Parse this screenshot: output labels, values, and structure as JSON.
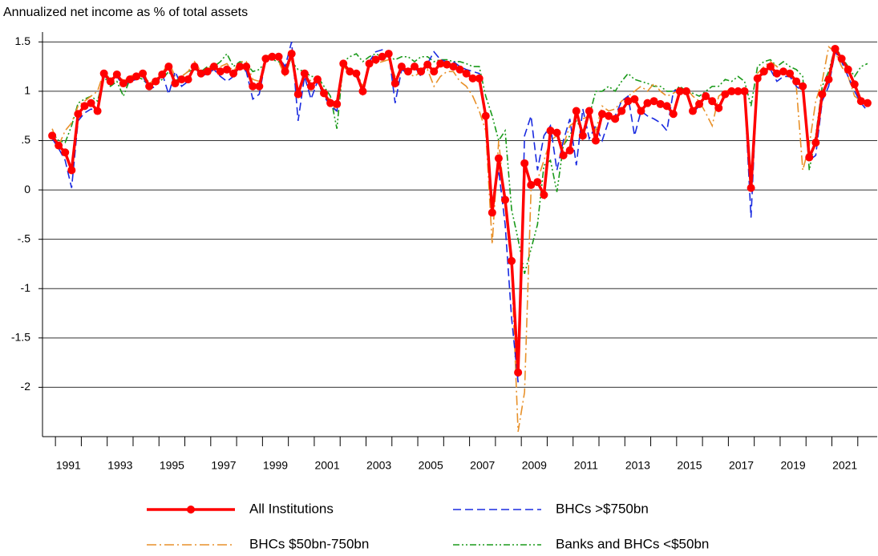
{
  "chart_data": {
    "type": "line",
    "title": "Annualized net income as % of total assets",
    "x": [
      1990.875,
      1991.125,
      1991.375,
      1991.625,
      1991.875,
      1992.125,
      1992.375,
      1992.625,
      1992.875,
      1993.125,
      1993.375,
      1993.625,
      1993.875,
      1994.125,
      1994.375,
      1994.625,
      1994.875,
      1995.125,
      1995.375,
      1995.625,
      1995.875,
      1996.125,
      1996.375,
      1996.625,
      1996.875,
      1997.125,
      1997.375,
      1997.625,
      1997.875,
      1998.125,
      1998.375,
      1998.625,
      1998.875,
      1999.125,
      1999.375,
      1999.625,
      1999.875,
      2000.125,
      2000.375,
      2000.625,
      2000.875,
      2001.125,
      2001.375,
      2001.625,
      2001.875,
      2002.125,
      2002.375,
      2002.625,
      2002.875,
      2003.125,
      2003.375,
      2003.625,
      2003.875,
      2004.125,
      2004.375,
      2004.625,
      2004.875,
      2005.125,
      2005.375,
      2005.625,
      2005.875,
      2006.125,
      2006.375,
      2006.625,
      2006.875,
      2007.125,
      2007.375,
      2007.625,
      2007.875,
      2008.125,
      2008.375,
      2008.625,
      2008.875,
      2009.125,
      2009.375,
      2009.625,
      2009.875,
      2010.125,
      2010.375,
      2010.625,
      2010.875,
      2011.125,
      2011.375,
      2011.625,
      2011.875,
      2012.125,
      2012.375,
      2012.625,
      2012.875,
      2013.125,
      2013.375,
      2013.625,
      2013.875,
      2014.125,
      2014.375,
      2014.625,
      2014.875,
      2015.125,
      2015.375,
      2015.625,
      2015.875,
      2016.125,
      2016.375,
      2016.625,
      2016.875,
      2017.125,
      2017.375,
      2017.625,
      2017.875,
      2018.125,
      2018.375,
      2018.625,
      2018.875,
      2019.125,
      2019.375,
      2019.625,
      2019.875,
      2020.125,
      2020.375,
      2020.625,
      2020.875,
      2021.125,
      2021.375,
      2021.625,
      2021.875,
      2022.125,
      2022.375
    ],
    "series": [
      {
        "name": "All Institutions",
        "color": "#ff0000",
        "line_style": "solid",
        "markers": true,
        "values": [
          0.55,
          0.45,
          0.38,
          0.2,
          0.77,
          0.85,
          0.88,
          0.8,
          1.18,
          1.1,
          1.17,
          1.08,
          1.12,
          1.15,
          1.18,
          1.05,
          1.1,
          1.17,
          1.25,
          1.08,
          1.12,
          1.12,
          1.25,
          1.18,
          1.2,
          1.25,
          1.2,
          1.22,
          1.18,
          1.25,
          1.25,
          1.05,
          1.05,
          1.33,
          1.35,
          1.35,
          1.2,
          1.38,
          0.97,
          1.18,
          1.05,
          1.12,
          0.98,
          0.88,
          0.87,
          1.28,
          1.2,
          1.18,
          1.0,
          1.28,
          1.32,
          1.35,
          1.38,
          1.08,
          1.25,
          1.2,
          1.25,
          1.2,
          1.27,
          1.2,
          1.28,
          1.27,
          1.25,
          1.22,
          1.18,
          1.13,
          1.13,
          0.75,
          -0.23,
          0.32,
          -0.1,
          -0.72,
          -1.85,
          0.27,
          0.05,
          0.08,
          -0.05,
          0.6,
          0.58,
          0.35,
          0.4,
          0.8,
          0.55,
          0.8,
          0.5,
          0.77,
          0.75,
          0.72,
          0.8,
          0.9,
          0.92,
          0.8,
          0.88,
          0.9,
          0.87,
          0.85,
          0.77,
          1.0,
          1.0,
          0.8,
          0.87,
          0.95,
          0.9,
          0.83,
          0.97,
          1.0,
          1.0,
          1.0,
          0.02,
          1.13,
          1.2,
          1.25,
          1.18,
          1.2,
          1.18,
          1.1,
          1.05,
          0.33,
          0.48,
          0.97,
          1.12,
          1.43,
          1.33,
          1.22,
          1.07,
          0.9,
          0.88
        ]
      },
      {
        "name": "BHCs >$750bn",
        "color": "#1a2be0",
        "line_style": "dashed",
        "markers": false,
        "values": [
          0.52,
          0.42,
          0.3,
          0.02,
          0.7,
          0.78,
          0.82,
          0.8,
          1.15,
          1.12,
          1.15,
          1.05,
          1.1,
          1.12,
          1.15,
          1.02,
          1.05,
          1.18,
          0.97,
          1.2,
          1.05,
          1.1,
          1.25,
          1.15,
          1.18,
          1.22,
          1.15,
          1.1,
          1.15,
          1.25,
          1.2,
          0.92,
          0.97,
          1.32,
          1.38,
          1.35,
          1.25,
          1.5,
          0.7,
          1.15,
          0.92,
          1.1,
          0.95,
          0.85,
          0.8,
          1.3,
          1.2,
          1.15,
          1.0,
          1.3,
          1.4,
          1.42,
          1.4,
          0.88,
          1.22,
          1.18,
          1.25,
          1.15,
          1.28,
          1.4,
          1.32,
          1.3,
          1.3,
          1.25,
          1.22,
          1.2,
          1.18,
          0.72,
          -0.12,
          0.2,
          -0.35,
          -1.3,
          -1.95,
          0.55,
          0.75,
          0.2,
          0.55,
          0.65,
          0.2,
          0.5,
          0.72,
          0.25,
          0.82,
          0.52,
          0.65,
          0.5,
          0.7,
          0.75,
          0.9,
          0.95,
          0.55,
          0.8,
          0.75,
          0.72,
          0.68,
          0.6,
          1.0,
          1.02,
          1.0,
          0.78,
          0.85,
          0.95,
          0.92,
          0.8,
          0.97,
          1.0,
          0.98,
          0.98,
          -0.28,
          1.15,
          1.17,
          1.22,
          1.1,
          1.15,
          1.15,
          1.05,
          1.0,
          0.3,
          0.35,
          0.9,
          1.05,
          1.4,
          1.3,
          1.15,
          1.0,
          0.88,
          0.8
        ]
      },
      {
        "name": "BHCs $50bn-750bn",
        "color": "#e8912a",
        "line_style": "dashdot",
        "markers": false,
        "values": [
          0.62,
          0.45,
          0.6,
          0.68,
          0.85,
          0.9,
          0.95,
          1.0,
          1.2,
          1.12,
          1.2,
          1.1,
          1.15,
          1.18,
          1.2,
          1.08,
          1.12,
          1.18,
          1.3,
          1.15,
          1.15,
          1.2,
          1.3,
          1.2,
          1.22,
          1.28,
          1.25,
          1.28,
          1.2,
          1.3,
          1.3,
          1.12,
          1.1,
          1.35,
          1.38,
          1.3,
          1.15,
          1.35,
          1.0,
          1.2,
          1.1,
          1.15,
          1.0,
          0.92,
          0.78,
          1.25,
          1.18,
          1.2,
          1.05,
          1.25,
          1.28,
          1.3,
          1.32,
          1.15,
          1.22,
          1.18,
          1.15,
          1.2,
          1.22,
          1.05,
          1.15,
          1.2,
          1.2,
          1.1,
          1.05,
          0.95,
          0.8,
          0.6,
          -0.55,
          0.5,
          -0.15,
          -0.8,
          -2.45,
          -2.05,
          0.0,
          0.1,
          0.3,
          0.5,
          0.55,
          0.45,
          0.65,
          0.7,
          0.72,
          0.75,
          0.6,
          0.85,
          0.8,
          0.82,
          0.9,
          0.95,
          1.0,
          1.05,
          1.0,
          1.08,
          1.0,
          0.95,
          0.98,
          1.02,
          1.03,
          0.95,
          0.9,
          0.78,
          0.65,
          0.95,
          1.0,
          1.02,
          1.0,
          1.02,
          0.1,
          1.18,
          1.25,
          1.3,
          1.25,
          1.2,
          1.15,
          1.05,
          0.2,
          0.45,
          0.9,
          1.1,
          1.45,
          1.4,
          1.25,
          1.15,
          0.95,
          0.9,
          0.85
        ]
      },
      {
        "name": "Banks and BHCs <$50bn",
        "color": "#1a9a1a",
        "line_style": "dashdotdot",
        "markers": false,
        "values": [
          0.58,
          0.5,
          0.48,
          0.65,
          0.88,
          0.92,
          0.95,
          0.9,
          1.15,
          1.05,
          1.1,
          0.95,
          1.12,
          1.15,
          1.12,
          1.05,
          1.08,
          1.12,
          1.2,
          1.1,
          1.15,
          1.2,
          1.22,
          1.2,
          1.25,
          1.25,
          1.3,
          1.38,
          1.25,
          1.3,
          1.28,
          1.2,
          1.22,
          1.3,
          1.32,
          1.3,
          1.25,
          1.3,
          1.22,
          1.2,
          1.15,
          1.15,
          1.05,
          0.95,
          0.62,
          1.3,
          1.35,
          1.38,
          1.3,
          1.35,
          1.38,
          1.35,
          1.35,
          1.32,
          1.35,
          1.35,
          1.3,
          1.35,
          1.35,
          1.3,
          1.32,
          1.32,
          1.3,
          1.3,
          1.28,
          1.25,
          1.25,
          0.95,
          0.75,
          0.5,
          0.6,
          -0.2,
          -0.5,
          -0.85,
          -0.6,
          -0.35,
          0.25,
          0.3,
          -0.02,
          0.45,
          0.55,
          0.7,
          0.6,
          0.75,
          1.0,
          1.0,
          1.05,
          1.0,
          1.1,
          1.18,
          1.12,
          1.1,
          1.08,
          1.05,
          1.05,
          1.0,
          1.0,
          1.05,
          1.0,
          0.98,
          0.95,
          1.0,
          1.05,
          1.05,
          1.12,
          1.1,
          1.15,
          1.1,
          0.85,
          1.25,
          1.3,
          1.32,
          1.25,
          1.3,
          1.25,
          1.22,
          1.15,
          0.2,
          0.55,
          1.05,
          1.2,
          1.45,
          1.35,
          1.25,
          1.15,
          1.25,
          1.28
        ]
      }
    ],
    "xlim": [
      1990.5,
      2022.75
    ],
    "xticks": [
      {
        "value": 1991.5,
        "label": "1991"
      },
      {
        "value": 1993.5,
        "label": "1993"
      },
      {
        "value": 1995.5,
        "label": "1995"
      },
      {
        "value": 1997.5,
        "label": "1997"
      },
      {
        "value": 1999.5,
        "label": "1999"
      },
      {
        "value": 2001.5,
        "label": "2001"
      },
      {
        "value": 2003.5,
        "label": "2003"
      },
      {
        "value": 2005.5,
        "label": "2005"
      },
      {
        "value": 2007.5,
        "label": "2007"
      },
      {
        "value": 2009.5,
        "label": "2009"
      },
      {
        "value": 2011.5,
        "label": "2011"
      },
      {
        "value": 2013.5,
        "label": "2013"
      },
      {
        "value": 2015.5,
        "label": "2015"
      },
      {
        "value": 2017.5,
        "label": "2017"
      },
      {
        "value": 2019.5,
        "label": "2019"
      },
      {
        "value": 2021.5,
        "label": "2021"
      }
    ],
    "xticks_minor": [
      1991,
      1992,
      1993,
      1994,
      1995,
      1996,
      1997,
      1998,
      1999,
      2000,
      2001,
      2002,
      2003,
      2004,
      2005,
      2006,
      2007,
      2008,
      2009,
      2010,
      2011,
      2012,
      2013,
      2014,
      2015,
      2016,
      2017,
      2018,
      2019,
      2020,
      2021,
      2022
    ],
    "ylim": [
      -2.5,
      1.6
    ],
    "yticks": [
      {
        "value": -2,
        "label": "-2"
      },
      -1.5,
      -1,
      {
        "value": -0.5,
        "label": "-.5"
      },
      0,
      {
        "value": 0.5,
        "label": ".5"
      },
      1,
      1.5
    ],
    "grid": true,
    "legend": "bottom"
  }
}
